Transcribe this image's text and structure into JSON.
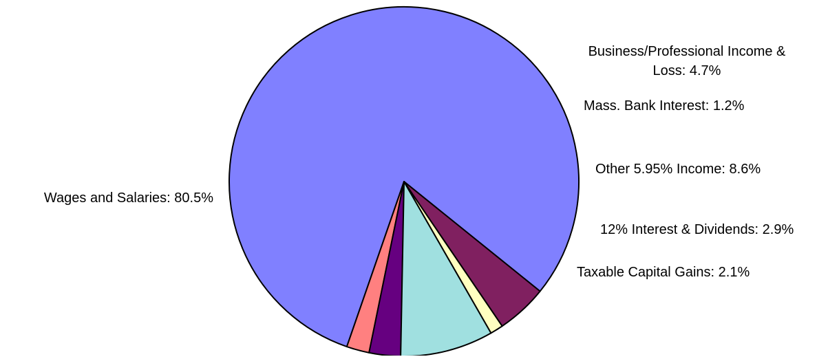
{
  "chart_data": {
    "type": "pie",
    "title": "",
    "slices": [
      {
        "name": "Wages and Salaries",
        "value": 80.5,
        "label": "Wages and Salaries: 80.5%",
        "color": "#8080FF"
      },
      {
        "name": "Taxable Capital Gains",
        "value": 2.1,
        "label": "Taxable Capital Gains: 2.1%",
        "color": "#FF8080"
      },
      {
        "name": "12% Interest & Dividends",
        "value": 2.9,
        "label": "12% Interest & Dividends: 2.9%",
        "color": "#660080"
      },
      {
        "name": "Other 5.95% Income",
        "value": 8.6,
        "label": "Other 5.95% Income: 8.6%",
        "color": "#A0E0E0"
      },
      {
        "name": "Mass. Bank Interest",
        "value": 1.2,
        "label": "Mass. Bank Interest: 1.2%",
        "color": "#FFFFC0"
      },
      {
        "name": "Business/Professional Income & Loss",
        "value": 4.7,
        "label_lines": [
          "Business/Professional Income &",
          "Loss: 4.7%"
        ],
        "color": "#802060"
      }
    ],
    "legend": "none",
    "labels": "outside"
  }
}
